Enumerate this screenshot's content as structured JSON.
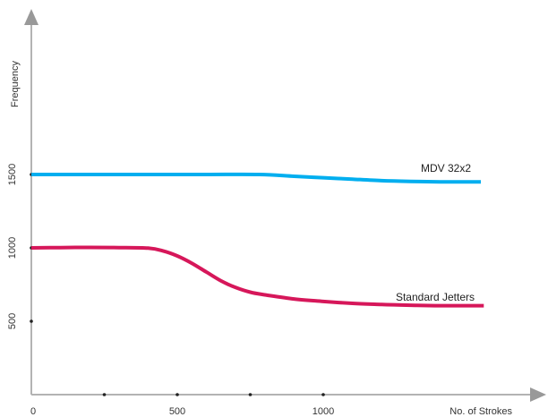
{
  "chart_data": {
    "type": "line",
    "title": "",
    "xlabel": "No. of Strokes",
    "ylabel": "Frequency",
    "xlim": [
      0,
      1720
    ],
    "ylim": [
      0,
      2450
    ],
    "x_ticks": [
      0,
      250,
      500,
      750,
      1000
    ],
    "x_tick_labels": [
      {
        "value": 0,
        "label": "0"
      },
      {
        "value": 500,
        "label": "500"
      },
      {
        "value": 1000,
        "label": "1000"
      }
    ],
    "y_ticks": [
      500,
      1000,
      1500
    ],
    "y_tick_labels": [
      {
        "value": 500,
        "label": "500"
      },
      {
        "value": 1000,
        "label": "1000"
      },
      {
        "value": 1500,
        "label": "1500"
      }
    ],
    "grid": false,
    "series": [
      {
        "name": "MDV 32x2",
        "color": "#00aeef",
        "x": [
          0,
          200,
          400,
          600,
          780,
          900,
          1000,
          1100,
          1200,
          1300,
          1400,
          1540
        ],
        "y": [
          1500,
          1500,
          1500,
          1500,
          1500,
          1488,
          1478,
          1468,
          1458,
          1453,
          1450,
          1450
        ]
      },
      {
        "name": "Standard Jetters",
        "color": "#d6175a",
        "x": [
          0,
          100,
          200,
          300,
          400,
          450,
          500,
          550,
          600,
          650,
          700,
          750,
          800,
          900,
          1000,
          1100,
          1200,
          1300,
          1400,
          1550
        ],
        "y": [
          1000,
          1002,
          1003,
          1002,
          998,
          980,
          945,
          895,
          835,
          775,
          730,
          698,
          680,
          652,
          635,
          622,
          614,
          609,
          606,
          606
        ]
      }
    ]
  }
}
